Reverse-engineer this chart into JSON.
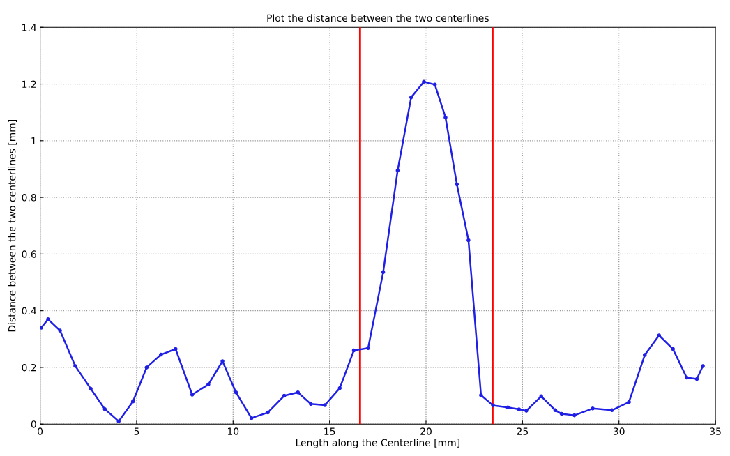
{
  "chart_data": {
    "type": "line",
    "title": "Plot the distance between the two centerlines",
    "xlabel": "Length along the Centerline [mm]",
    "ylabel": "Distance between the two centerlines [mm]",
    "xlim": [
      0,
      35
    ],
    "xticks": [
      0,
      5,
      10,
      15,
      20,
      25,
      30,
      35
    ],
    "ylim": [
      0,
      1.4
    ],
    "yticks": [
      0,
      0.2,
      0.4,
      0.6,
      0.8,
      1,
      1.2,
      1.4
    ],
    "grid": true,
    "marker": "circle",
    "line_style": "solid",
    "series": [
      {
        "color": "#1f1fe6",
        "x": [
          0.06,
          0.41,
          1.03,
          1.82,
          2.62,
          3.35,
          4.07,
          4.81,
          5.52,
          6.26,
          7.02,
          7.88,
          8.72,
          9.45,
          10.15,
          10.95,
          11.8,
          12.65,
          13.36,
          14.03,
          14.76,
          15.53,
          16.26,
          17.0,
          17.78,
          18.53,
          19.23,
          19.89,
          20.46,
          21.01,
          21.6,
          22.2,
          22.85,
          23.47,
          24.24,
          24.82,
          25.2,
          25.97,
          26.7,
          27.03,
          27.69,
          28.64,
          29.64,
          30.52,
          31.34,
          32.08,
          32.8,
          33.51,
          34.04,
          34.35
        ],
        "values": [
          0.34,
          0.37,
          0.33,
          0.205,
          0.125,
          0.053,
          0.01,
          0.08,
          0.2,
          0.245,
          0.265,
          0.104,
          0.14,
          0.222,
          0.112,
          0.021,
          0.041,
          0.1,
          0.112,
          0.071,
          0.067,
          0.127,
          0.26,
          0.268,
          0.536,
          0.895,
          1.153,
          1.208,
          1.198,
          1.082,
          0.846,
          0.649,
          0.102,
          0.066,
          0.059,
          0.052,
          0.047,
          0.098,
          0.049,
          0.036,
          0.031,
          0.055,
          0.049,
          0.078,
          0.244,
          0.313,
          0.265,
          0.164,
          0.159,
          0.205
        ]
      }
    ],
    "ref_lines": [
      {
        "axis": "x",
        "value": 16.58,
        "color": "#ff0000",
        "line_style": "solid"
      },
      {
        "axis": "x",
        "value": 23.45,
        "color": "#ff0000",
        "line_style": "solid"
      }
    ]
  }
}
